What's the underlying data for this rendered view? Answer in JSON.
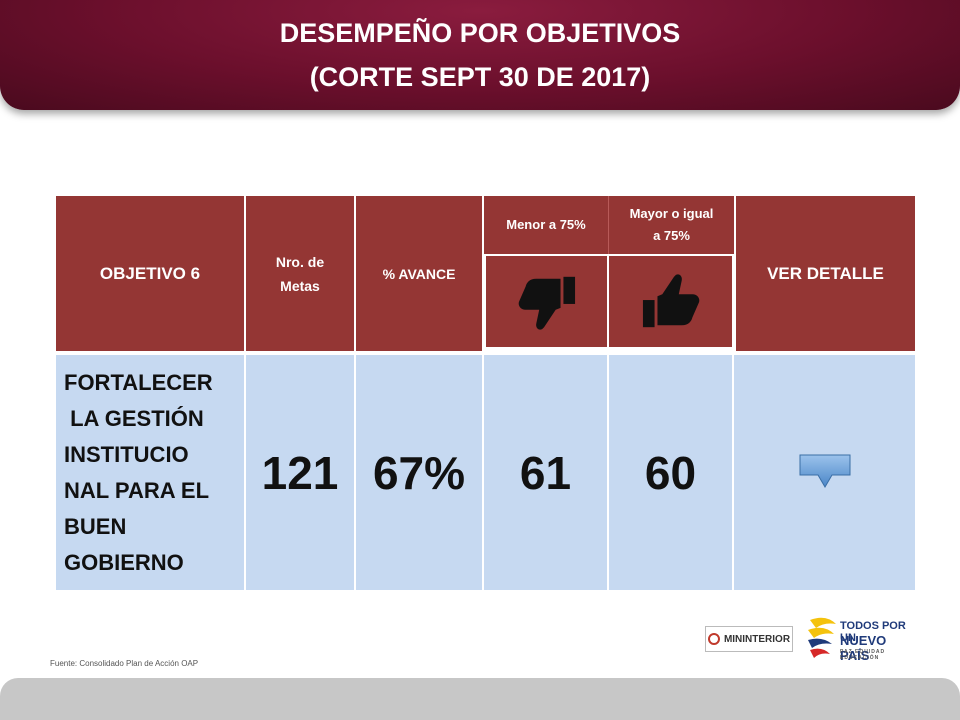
{
  "header": {
    "title_line1": "DESEMPEÑO POR OBJETIVOS",
    "title_line2": "(CORTE SEPT 30 DE 2017)",
    "background_color": "#6b0f2c"
  },
  "table": {
    "header": {
      "objetivo": "OBJETIVO 6",
      "nro_metas": "Nro. de Metas",
      "avance": "% AVANCE",
      "menor": "Menor a 75%",
      "mayor": "Mayor o igual a 75%",
      "ver_detalle": "VER DETALLE",
      "menor_icon": "thumbs-down-icon",
      "mayor_icon": "thumbs-up-icon"
    },
    "row": {
      "objetivo_lines": [
        "FORTALECER",
        " LA GESTIÓN",
        "INSTITUCIO",
        "NAL PARA EL",
        "BUEN",
        "GOBIERNO"
      ],
      "nro_metas": "121",
      "avance": "67%",
      "menor": "61",
      "mayor": "60",
      "detalle_icon": "down-arrow-button-icon"
    },
    "colors": {
      "header_bg": "#943634",
      "row_bg": "#c6d9f1",
      "detail_button": "#5b9bd5"
    }
  },
  "footer": {
    "source": "Fuente: Consolidado Plan de Acción OAP",
    "logo_mininterior": "MININTERIOR",
    "logo_todos_line1": "TODOS POR UN",
    "logo_todos_line2": "NUEVO PAÍS",
    "logo_todos_line3": "PAZ  EQUIDAD  EDUCACIÓN"
  }
}
